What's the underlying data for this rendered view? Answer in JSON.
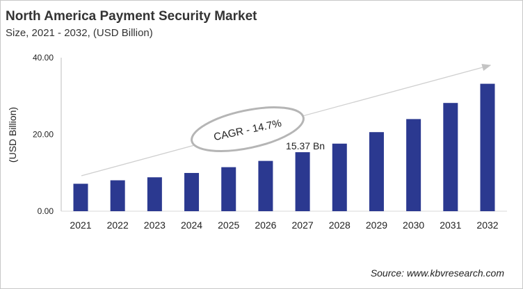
{
  "chart_data": {
    "type": "bar",
    "title": "North America Payment Security Market",
    "subtitle": "Size, 2021 - 2032, (USD Billion)",
    "xlabel": "",
    "ylabel": "(USD Billion)",
    "ylim": [
      0,
      40
    ],
    "yticks": [
      "0.00",
      "20.00",
      "40.00"
    ],
    "grid": false,
    "categories": [
      "2021",
      "2022",
      "2023",
      "2024",
      "2025",
      "2026",
      "2027",
      "2028",
      "2029",
      "2030",
      "2031",
      "2032"
    ],
    "values": [
      7.15,
      8.05,
      8.83,
      9.96,
      11.47,
      13.1,
      15.37,
      17.6,
      20.6,
      24.0,
      28.2,
      33.2
    ],
    "bar_color": "#2b3990",
    "data_label": {
      "category": "2027",
      "text": "15.37 Bn"
    },
    "annotation": "CAGR - 14.7%"
  },
  "source": "Source: www.kbvresearch.com"
}
